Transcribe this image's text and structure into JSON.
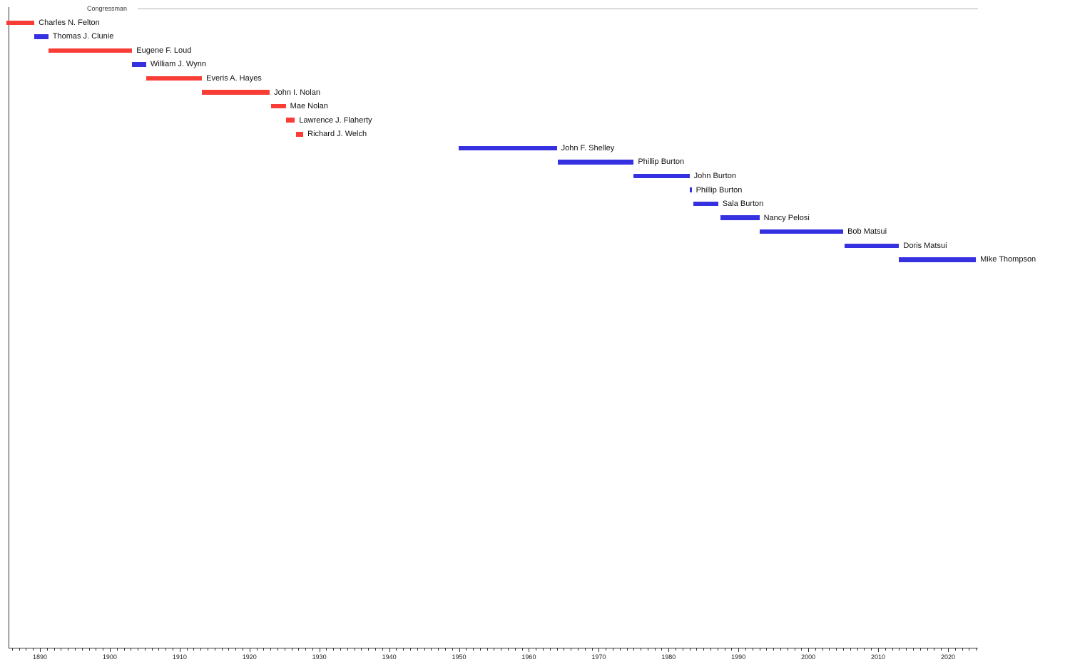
{
  "chart_data": {
    "type": "bar",
    "subtype": "gantt-timeline",
    "group_label": "Congressman",
    "x_range": [
      1885.6,
      2024.3
    ],
    "x_major_ticks": [
      1890,
      1900,
      1910,
      1920,
      1930,
      1940,
      1950,
      1960,
      1970,
      1980,
      1990,
      2000,
      2010,
      2020
    ],
    "x_minor_tick_interval": 1,
    "x_minor_tick_start": 1886,
    "x_minor_tick_end": 2024,
    "grid": "off",
    "legend": "none",
    "colors": {
      "red": "#f73d36",
      "blue": "#3631e0",
      "axis": "#333333",
      "header_line": "#b0b0b0",
      "bar_label_text": "#111111",
      "tick_text": "#222222"
    },
    "series": [
      {
        "name": "Charles N. Felton",
        "color": "red",
        "start": 1885.2,
        "end": 1889.2
      },
      {
        "name": "Thomas J. Clunie",
        "color": "blue",
        "start": 1889.2,
        "end": 1891.2
      },
      {
        "name": "Eugene F. Loud",
        "color": "red",
        "start": 1891.2,
        "end": 1903.2
      },
      {
        "name": "William J. Wynn",
        "color": "blue",
        "start": 1903.2,
        "end": 1905.2
      },
      {
        "name": "Everis A. Hayes",
        "color": "red",
        "start": 1905.2,
        "end": 1913.2
      },
      {
        "name": "John I. Nolan",
        "color": "red",
        "start": 1913.2,
        "end": 1922.9
      },
      {
        "name": "Mae Nolan",
        "color": "red",
        "start": 1923.1,
        "end": 1925.2
      },
      {
        "name": "Lawrence J. Flaherty",
        "color": "red",
        "start": 1925.2,
        "end": 1926.5
      },
      {
        "name": "Richard J. Welch",
        "color": "red",
        "start": 1926.7,
        "end": 1927.7
      },
      {
        "name": "John F. Shelley",
        "color": "blue",
        "start": 1949.9,
        "end": 1964.0
      },
      {
        "name": "Phillip Burton",
        "color": "blue",
        "start": 1964.1,
        "end": 1975.0
      },
      {
        "name": "John Burton",
        "color": "blue",
        "start": 1975.0,
        "end": 1983.0
      },
      {
        "name": "Phillip Burton",
        "color": "blue",
        "start": 1983.0,
        "end": 1983.3
      },
      {
        "name": "Sala Burton",
        "color": "blue",
        "start": 1983.5,
        "end": 1987.1
      },
      {
        "name": "Nancy Pelosi",
        "color": "blue",
        "start": 1987.4,
        "end": 1993.0
      },
      {
        "name": "Bob Matsui",
        "color": "blue",
        "start": 1993.0,
        "end": 2005.0
      },
      {
        "name": "Doris Matsui",
        "color": "blue",
        "start": 2005.2,
        "end": 2013.0
      },
      {
        "name": "Mike Thompson",
        "color": "blue",
        "start": 2013.0,
        "end": 2024.0
      }
    ]
  }
}
